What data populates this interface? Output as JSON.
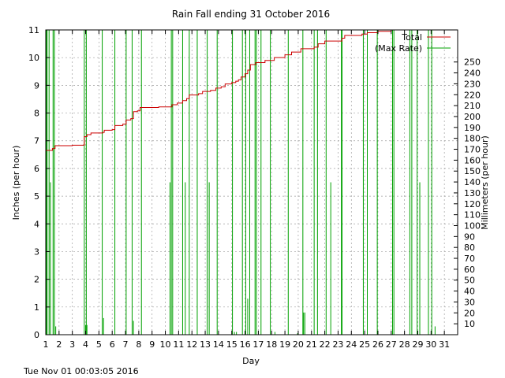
{
  "chart_data": {
    "type": "line",
    "title": "Rain Fall ending 31 October 2016",
    "xlabel": "Day",
    "ylabel": "Inches (per hour)",
    "y2label": "Millimeters (per hour)",
    "footer": "Tue Nov 01 00:03:05 2016",
    "xlim": [
      1,
      32
    ],
    "ylim": [
      0,
      11
    ],
    "x_ticks": [
      "1",
      "2",
      "3",
      "4",
      "5",
      "6",
      "7",
      "8",
      "9",
      "10",
      "11",
      "12",
      "13",
      "14",
      "15",
      "16",
      "17",
      "18",
      "19",
      "20",
      "21",
      "22",
      "23",
      "24",
      "25",
      "26",
      "27",
      "28",
      "29",
      "30",
      "31"
    ],
    "y_ticks": [
      "0",
      "1",
      "2",
      "3",
      "4",
      "5",
      "6",
      "7",
      "8",
      "9",
      "10",
      "11"
    ],
    "y2_ticks": [
      "10",
      "20",
      "30",
      "40",
      "50",
      "60",
      "70",
      "80",
      "90",
      "100",
      "110",
      "120",
      "130",
      "140",
      "150",
      "160",
      "170",
      "180",
      "190",
      "200",
      "210",
      "220",
      "230",
      "240",
      "250"
    ],
    "grid": true,
    "legend_position": "top-right",
    "series": [
      {
        "name": "Total",
        "color": "#cc0000",
        "points": [
          [
            1.0,
            6.65
          ],
          [
            1.5,
            6.72
          ],
          [
            1.7,
            6.82
          ],
          [
            3.0,
            6.84
          ],
          [
            3.85,
            6.85
          ],
          [
            3.9,
            7.15
          ],
          [
            4.1,
            7.22
          ],
          [
            4.4,
            7.28
          ],
          [
            5.3,
            7.3
          ],
          [
            5.4,
            7.38
          ],
          [
            6.0,
            7.4
          ],
          [
            6.2,
            7.55
          ],
          [
            6.8,
            7.6
          ],
          [
            7.05,
            7.75
          ],
          [
            7.4,
            7.8
          ],
          [
            7.6,
            8.05
          ],
          [
            7.9,
            8.08
          ],
          [
            8.1,
            8.2
          ],
          [
            9.5,
            8.22
          ],
          [
            10.4,
            8.22
          ],
          [
            10.5,
            8.3
          ],
          [
            10.9,
            8.36
          ],
          [
            11.3,
            8.45
          ],
          [
            11.6,
            8.52
          ],
          [
            11.8,
            8.65
          ],
          [
            12.5,
            8.7
          ],
          [
            12.8,
            8.78
          ],
          [
            13.4,
            8.82
          ],
          [
            13.8,
            8.9
          ],
          [
            14.2,
            8.95
          ],
          [
            14.5,
            9.05
          ],
          [
            15.0,
            9.1
          ],
          [
            15.3,
            9.15
          ],
          [
            15.5,
            9.2
          ],
          [
            15.7,
            9.3
          ],
          [
            16.0,
            9.42
          ],
          [
            16.2,
            9.55
          ],
          [
            16.4,
            9.75
          ],
          [
            16.8,
            9.82
          ],
          [
            17.5,
            9.9
          ],
          [
            18.2,
            10.0
          ],
          [
            19.0,
            10.1
          ],
          [
            19.5,
            10.2
          ],
          [
            20.2,
            10.32
          ],
          [
            21.2,
            10.38
          ],
          [
            21.5,
            10.5
          ],
          [
            22.0,
            10.6
          ],
          [
            23.3,
            10.7
          ],
          [
            23.5,
            10.8
          ],
          [
            24.8,
            10.85
          ],
          [
            25.2,
            10.9
          ],
          [
            26.0,
            10.95
          ],
          [
            27.0,
            11.0
          ],
          [
            32.0,
            11.0
          ]
        ]
      },
      {
        "name": "(Max Rate)",
        "color": "#00a000",
        "spikes": [
          [
            1.05,
            11.0
          ],
          [
            1.1,
            11.0
          ],
          [
            1.25,
            11.0
          ],
          [
            1.35,
            5.5
          ],
          [
            1.55,
            11.0
          ],
          [
            1.65,
            11.0
          ],
          [
            1.75,
            0.3
          ],
          [
            3.9,
            11.0
          ],
          [
            4.0,
            0.35
          ],
          [
            4.05,
            11.0
          ],
          [
            4.1,
            0.35
          ],
          [
            5.25,
            11.0
          ],
          [
            5.35,
            0.6
          ],
          [
            6.2,
            11.0
          ],
          [
            7.05,
            11.0
          ],
          [
            7.5,
            11.0
          ],
          [
            7.6,
            0.5
          ],
          [
            8.2,
            11.0
          ],
          [
            10.35,
            5.5
          ],
          [
            10.45,
            11.0
          ],
          [
            10.55,
            11.0
          ],
          [
            11.3,
            11.0
          ],
          [
            11.5,
            5.5
          ],
          [
            11.8,
            11.0
          ],
          [
            12.4,
            11.0
          ],
          [
            13.15,
            11.0
          ],
          [
            13.3,
            5.5
          ],
          [
            13.9,
            11.0
          ],
          [
            15.05,
            11.0
          ],
          [
            15.2,
            0.1
          ],
          [
            15.35,
            0.1
          ],
          [
            15.8,
            11.0
          ],
          [
            16.05,
            11.0
          ],
          [
            16.2,
            1.3
          ],
          [
            16.35,
            11.0
          ],
          [
            16.75,
            11.0
          ],
          [
            16.85,
            11.0
          ],
          [
            17.2,
            11.0
          ],
          [
            17.9,
            11.0
          ],
          [
            18.25,
            0.1
          ],
          [
            19.25,
            11.0
          ],
          [
            19.95,
            0.05
          ],
          [
            20.35,
            11.0
          ],
          [
            20.4,
            0.8
          ],
          [
            20.5,
            0.8
          ],
          [
            21.2,
            11.0
          ],
          [
            21.45,
            11.0
          ],
          [
            22.1,
            11.0
          ],
          [
            22.45,
            5.5
          ],
          [
            23.25,
            11.0
          ],
          [
            23.3,
            11.0
          ],
          [
            24.9,
            11.0
          ],
          [
            25.2,
            11.0
          ],
          [
            25.95,
            11.0
          ],
          [
            27.1,
            11.0
          ],
          [
            27.2,
            11.0
          ],
          [
            28.4,
            11.0
          ],
          [
            28.55,
            11.0
          ],
          [
            28.95,
            11.0
          ],
          [
            29.15,
            5.5
          ],
          [
            29.8,
            11.0
          ],
          [
            30.05,
            11.0
          ],
          [
            30.3,
            0.3
          ]
        ]
      }
    ]
  }
}
